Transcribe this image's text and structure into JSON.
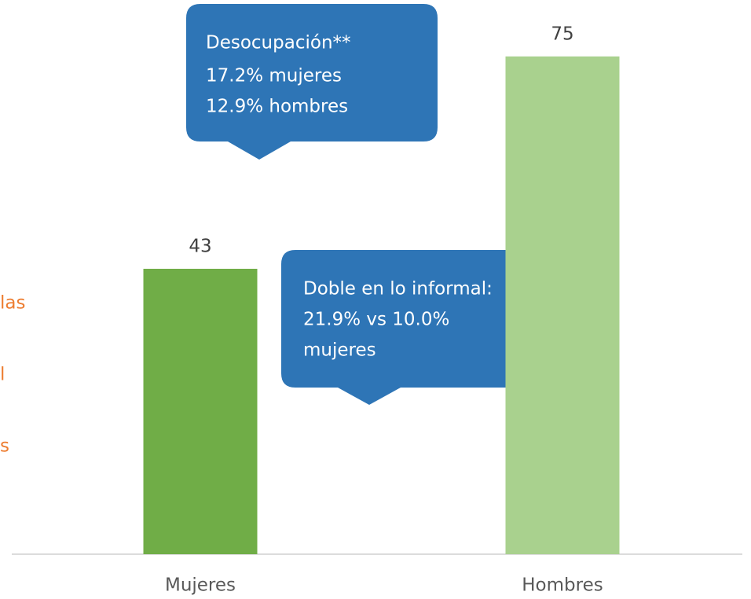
{
  "chart_data": {
    "type": "bar",
    "categories": [
      "Mujeres",
      "Hombres"
    ],
    "values": [
      43,
      75
    ],
    "colors": [
      "#70ad47",
      "#a9d18e"
    ],
    "ylim": [
      0,
      83.5
    ],
    "annotations": [
      {
        "lines": [
          "Desocupación**",
          "17.2% mujeres",
          "12.9% hombres"
        ]
      },
      {
        "lines": [
          "Doble en lo informal:",
          "21.9% vs 10.0%",
          "mujeres"
        ]
      }
    ],
    "side_text": [
      "las",
      "l",
      "s"
    ]
  }
}
